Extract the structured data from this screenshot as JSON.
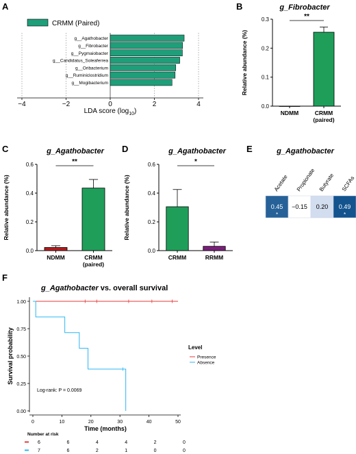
{
  "chart_data": [
    {
      "panel": "A",
      "type": "bar",
      "orientation": "horizontal",
      "legend": [
        "CRMM (Paired)"
      ],
      "categories": [
        "g__Agathobacter",
        "g__Fibrobacter",
        "g__Pygmaiobacter",
        "g__Candidatus_Soleaferrea",
        "g__Oribacterium",
        "g__Ruminiclostridium",
        "g__Mogibacterium"
      ],
      "values": [
        3.35,
        3.28,
        3.27,
        3.15,
        2.97,
        2.94,
        2.8
      ],
      "xlabel": "LDA score (log",
      "xlabel_sub": "10",
      "xlabel_end": ")",
      "xlim": [
        -4,
        4
      ],
      "xticks": [
        "−4",
        "−2",
        "0",
        "2",
        "4"
      ],
      "colors": {
        "bar": "#1f9e7a"
      }
    },
    {
      "panel": "B",
      "type": "bar",
      "title": "g_Fibrobacter",
      "ylabel": "Relative abundance (%)",
      "categories": [
        "NDMM",
        "CRMM"
      ],
      "category_sub": [
        "",
        "(paired)"
      ],
      "values": [
        0.0,
        0.255
      ],
      "errors": [
        0.0,
        0.018
      ],
      "ylim": [
        0,
        0.3
      ],
      "yticks": [
        "0.0",
        "0.1",
        "0.2",
        "0.3"
      ],
      "significance": "**",
      "colors": [
        "#b71c1c",
        "#1f9e5a"
      ]
    },
    {
      "panel": "C",
      "type": "bar",
      "title": "g_Agathobacter",
      "ylabel": "Relative abundance (%)",
      "categories": [
        "NDMM",
        "CRMM"
      ],
      "category_sub": [
        "",
        "(paired)"
      ],
      "values": [
        0.022,
        0.435
      ],
      "errors": [
        0.012,
        0.06
      ],
      "ylim": [
        0,
        0.6
      ],
      "yticks": [
        "0.0",
        "0.2",
        "0.4",
        "0.6"
      ],
      "significance": "**",
      "colors": [
        "#b71c1c",
        "#1f9e5a"
      ]
    },
    {
      "panel": "D",
      "type": "bar",
      "title": "g_Agathobacter",
      "ylabel": "Relative abundance (%)",
      "categories": [
        "CRMM",
        "RRMM"
      ],
      "category_sub": [
        "",
        ""
      ],
      "values": [
        0.305,
        0.03
      ],
      "errors": [
        0.12,
        0.03
      ],
      "ylim": [
        0,
        0.6
      ],
      "yticks": [
        "0.0",
        "0.2",
        "0.4",
        "0.6"
      ],
      "significance": "*",
      "colors": [
        "#1f9e5a",
        "#7b1f7b"
      ]
    },
    {
      "panel": "E",
      "type": "heatmap",
      "title": "g_Agathobacter",
      "columns": [
        "Acetate",
        "Propionate",
        "Butyrate",
        "SCFAs"
      ],
      "values": [
        0.45,
        -0.15,
        0.2,
        0.49
      ],
      "labels": [
        "0.45",
        "−0.15",
        "0.20",
        "0.49"
      ],
      "stars": [
        "*",
        "",
        "",
        "*"
      ]
    },
    {
      "panel": "F",
      "type": "line",
      "title": "g_Agathobacter",
      "title_suffix": " vs. overall survival",
      "xlabel": "Time (months)",
      "ylabel": "Survival probability",
      "xlim": [
        0,
        50
      ],
      "xticks": [
        "0",
        "10",
        "20",
        "30",
        "40",
        "50"
      ],
      "ylim": [
        0,
        1
      ],
      "yticks": [
        "0.00",
        "0.25",
        "0.50",
        "0.75",
        "1.00"
      ],
      "legend_title": "Level",
      "series": [
        {
          "name": "Presence",
          "color": "#e53935",
          "x": [
            0,
            50
          ],
          "y": [
            1.0,
            1.0
          ],
          "censor_x": [
            18,
            22,
            33,
            41,
            48
          ],
          "censor_y": [
            1,
            1,
            1,
            1,
            1
          ]
        },
        {
          "name": "Absence",
          "color": "#29b6f6",
          "x": [
            0,
            1,
            1,
            11,
            11,
            16,
            16,
            19,
            19,
            32,
            32
          ],
          "y": [
            1.0,
            1.0,
            0.857,
            0.857,
            0.714,
            0.714,
            0.571,
            0.571,
            0.381,
            0.381,
            0.0
          ],
          "censor_x": [
            31
          ],
          "censor_y": [
            0.381
          ]
        }
      ],
      "annotation": "Log-rank: P = 0.0069",
      "risk_table_title": "Number at risk",
      "risk_table": [
        {
          "color": "#e53935",
          "values": [
            "6",
            "6",
            "4",
            "4",
            "2",
            "0"
          ]
        },
        {
          "color": "#29b6f6",
          "values": [
            "7",
            "6",
            "2",
            "1",
            "0",
            "0"
          ]
        }
      ]
    }
  ],
  "panel_letters": [
    "A",
    "B",
    "C",
    "D",
    "E",
    "F"
  ]
}
